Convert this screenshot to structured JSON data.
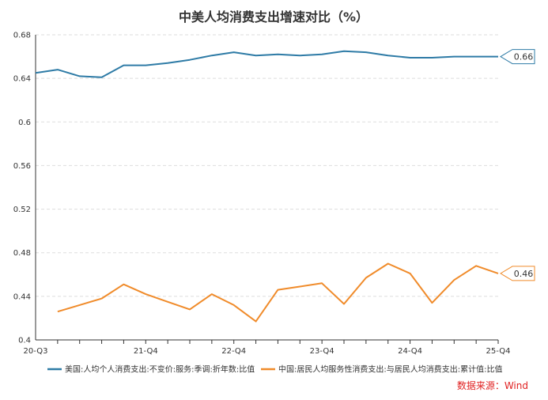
{
  "chart_data": {
    "type": "line",
    "title": "中美人均消费支出增速对比（%）",
    "x": [
      "20-Q3",
      "20-Q4",
      "21-Q1",
      "21-Q2",
      "21-Q3",
      "21-Q4",
      "22-Q1",
      "22-Q2",
      "22-Q3",
      "22-Q4",
      "23-Q1",
      "23-Q2",
      "23-Q3",
      "23-Q4",
      "24-Q1",
      "24-Q2",
      "24-Q3",
      "24-Q4",
      "25-Q1",
      "25-Q2",
      "25-Q3",
      "25-Q4"
    ],
    "x_tick_labels": [
      "20-Q3",
      "21-Q4",
      "22-Q4",
      "23-Q4",
      "24-Q4",
      "25-Q4"
    ],
    "y_tick_labels": [
      "0.4",
      "0.44",
      "0.48",
      "0.52",
      "0.56",
      "0.6",
      "0.64",
      "0.68"
    ],
    "ylim": [
      0.4,
      0.68
    ],
    "grid": true,
    "legend_position": "bottom",
    "series": [
      {
        "name": "美国:人均个人消费支出:不变价:服务:季调:折年数:比值",
        "color": "#2e7ba6",
        "end_label": "0.66",
        "x": [
          "20-Q3",
          "20-Q4",
          "21-Q1",
          "21-Q2",
          "21-Q3",
          "21-Q4",
          "22-Q1",
          "22-Q2",
          "22-Q3",
          "22-Q4",
          "23-Q1",
          "23-Q2",
          "23-Q3",
          "23-Q4",
          "24-Q1",
          "24-Q2",
          "24-Q3",
          "24-Q4",
          "25-Q1",
          "25-Q2",
          "25-Q3",
          "25-Q4"
        ],
        "values": [
          0.645,
          0.648,
          0.642,
          0.641,
          0.652,
          0.652,
          0.654,
          0.657,
          0.661,
          0.664,
          0.661,
          0.662,
          0.661,
          0.662,
          0.665,
          0.664,
          0.661,
          0.659,
          0.659,
          0.66,
          0.66,
          0.66
        ]
      },
      {
        "name": "中国:居民人均服务性消费支出:与居民人均消费支出:累计值:比值",
        "color": "#f08b2a",
        "end_label": "0.46",
        "x": [
          "20-Q4",
          "21-Q1",
          "21-Q2",
          "21-Q3",
          "21-Q4",
          "22-Q1",
          "22-Q2",
          "22-Q3",
          "22-Q4",
          "23-Q1",
          "23-Q2",
          "23-Q3",
          "23-Q4",
          "24-Q1",
          "24-Q2",
          "24-Q3",
          "24-Q4",
          "25-Q1",
          "25-Q2",
          "25-Q3",
          "25-Q4"
        ],
        "values": [
          0.426,
          0.432,
          0.438,
          0.451,
          0.442,
          0.435,
          0.428,
          0.442,
          0.432,
          0.417,
          0.446,
          0.449,
          0.452,
          0.433,
          0.457,
          0.47,
          0.461,
          0.434,
          0.455,
          0.468,
          0.461
        ]
      }
    ]
  },
  "source": {
    "label": "数据来源：Wind",
    "color": "#e02020"
  }
}
